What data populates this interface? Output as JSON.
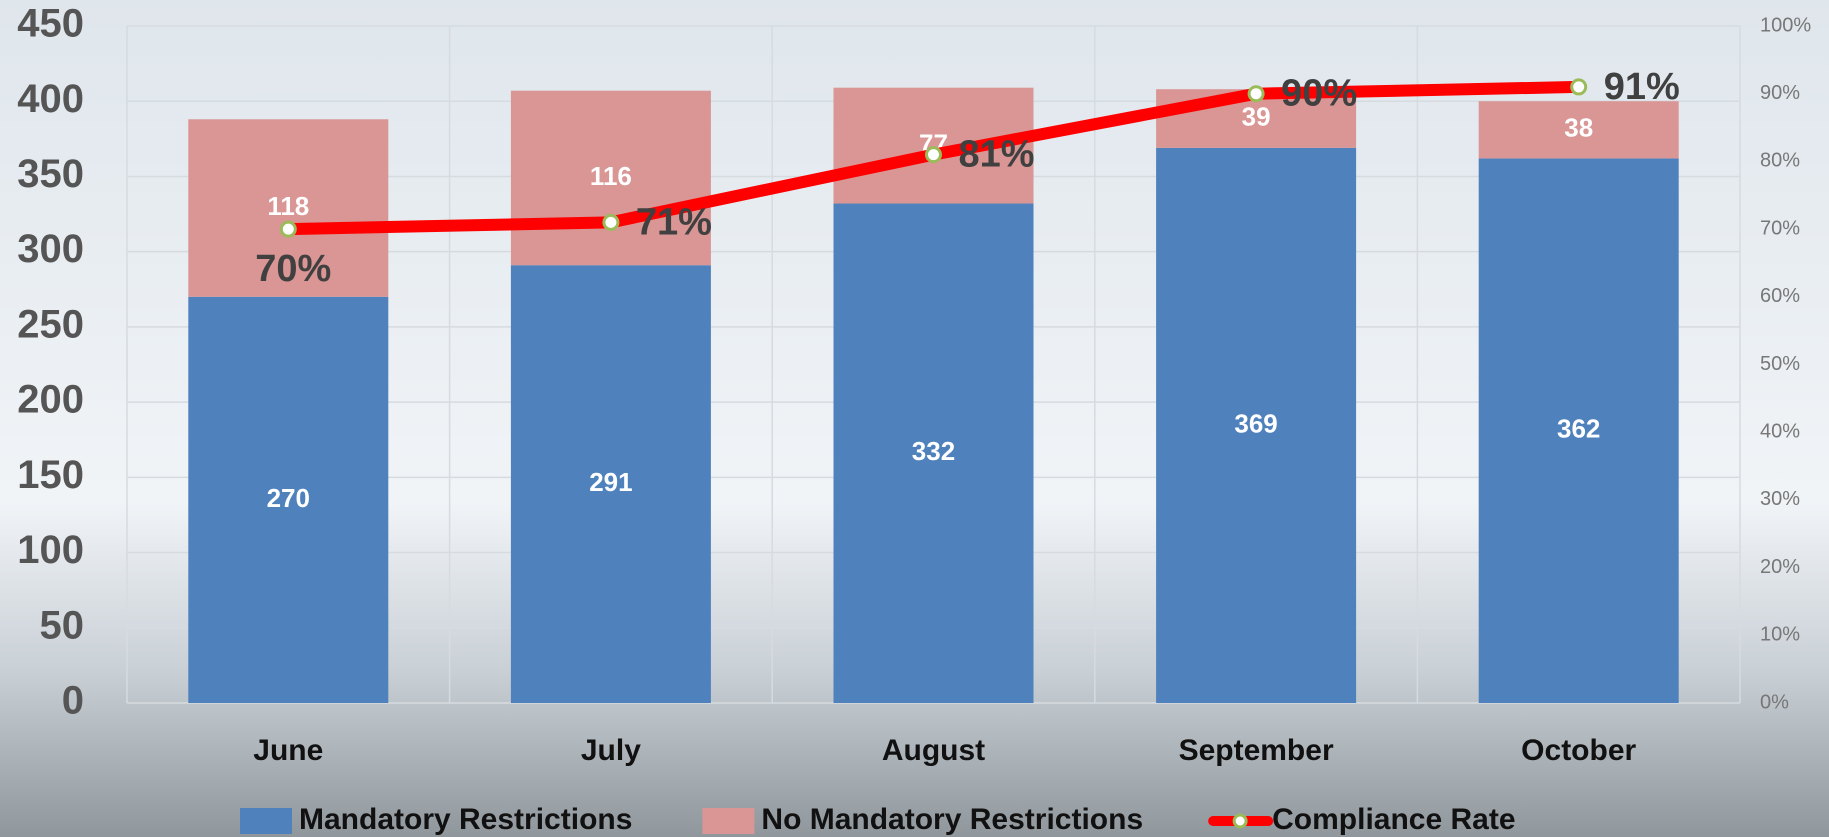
{
  "chart_data": {
    "type": "bar",
    "stacked": true,
    "categories": [
      "June",
      "July",
      "August",
      "September",
      "October"
    ],
    "series": [
      {
        "name": "Mandatory Restrictions",
        "type": "bar",
        "color": "#4f81bd",
        "values": [
          270,
          291,
          332,
          369,
          362
        ]
      },
      {
        "name": "No Mandatory Restrictions",
        "type": "bar",
        "color": "#d99694",
        "values": [
          118,
          116,
          77,
          39,
          38
        ]
      },
      {
        "name": "Compliance Rate",
        "type": "line",
        "axis": "y2",
        "color": "#ff0000",
        "marker_color": "#9bbb59",
        "values": [
          70,
          71,
          81,
          90,
          91
        ],
        "value_labels": [
          "70%",
          "71%",
          "81%",
          "90%",
          "91%"
        ]
      }
    ],
    "ylim": [
      0,
      450
    ],
    "yticks": [
      0,
      50,
      100,
      150,
      200,
      250,
      300,
      350,
      400,
      450
    ],
    "y2lim": [
      0,
      100
    ],
    "y2ticks": [
      {
        "value": 0,
        "label": "0%"
      },
      {
        "value": 10,
        "label": "10%"
      },
      {
        "value": 20,
        "label": "20%"
      },
      {
        "value": 30,
        "label": "30%"
      },
      {
        "value": 40,
        "label": "40%"
      },
      {
        "value": 50,
        "label": "50%"
      },
      {
        "value": 60,
        "label": "60%"
      },
      {
        "value": 70,
        "label": "70%"
      },
      {
        "value": 80,
        "label": "80%"
      },
      {
        "value": 90,
        "label": "90%"
      },
      {
        "value": 100,
        "label": "100%"
      }
    ],
    "grid": true,
    "legend": "bottom"
  }
}
